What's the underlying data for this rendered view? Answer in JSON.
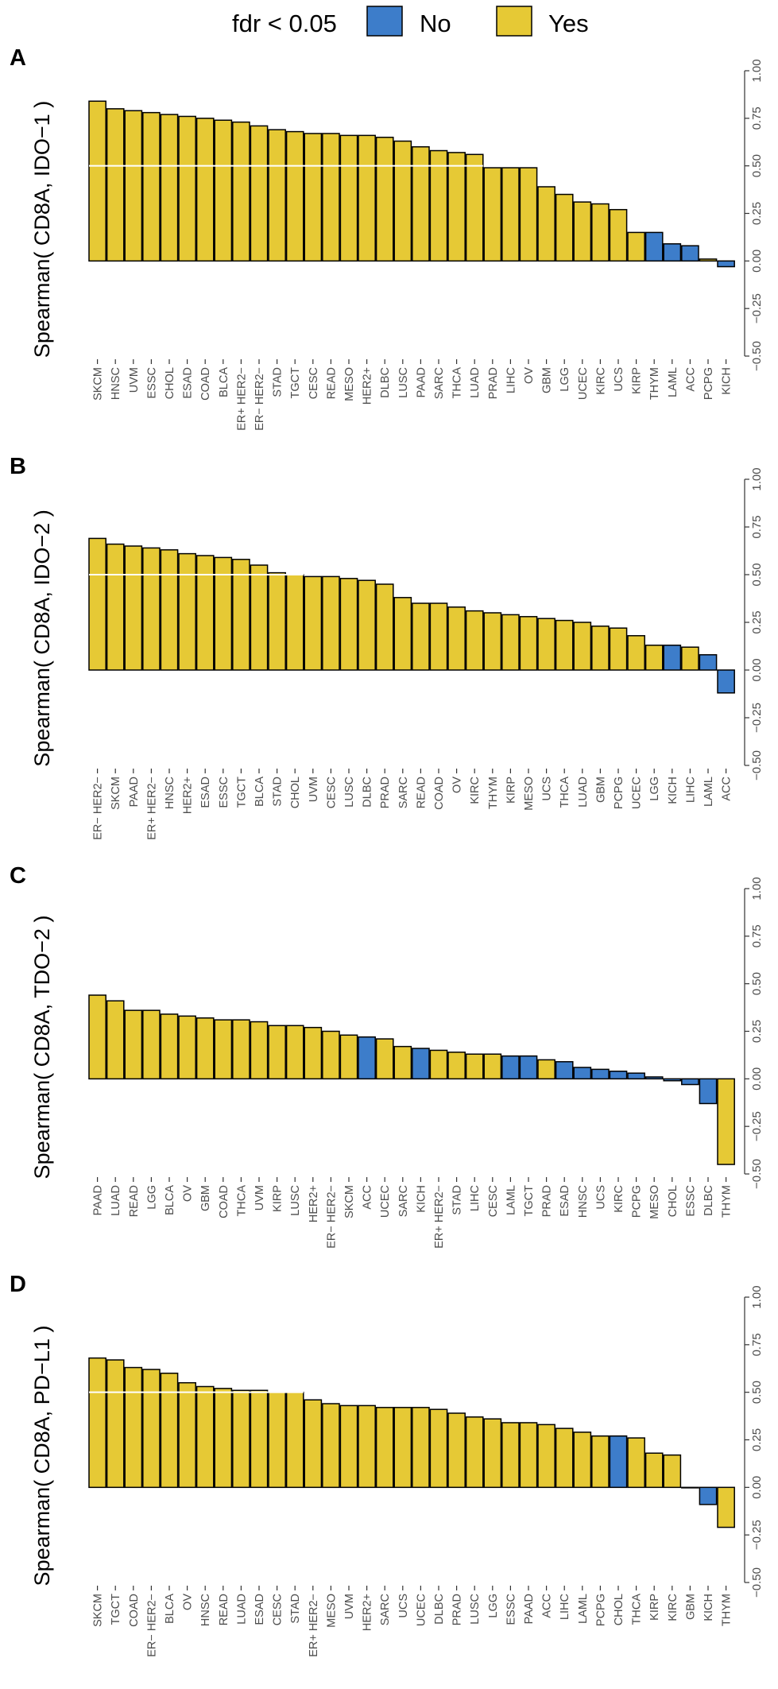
{
  "legend": {
    "title": "fdr < 0.05",
    "entries": [
      {
        "label": "No",
        "color": "#3D7DCA"
      },
      {
        "label": "Yes",
        "color": "#E6C935"
      }
    ]
  },
  "colors": {
    "No": "#3D7DCA",
    "Yes": "#E6C935",
    "stroke": "#000000",
    "refline": "#ffffff"
  },
  "chart_data": [
    {
      "panel": "A",
      "type": "bar",
      "ylabel": "Spearman( CD8A, IDO−1 )",
      "ylim": [
        -0.5,
        1.0
      ],
      "yticks": [
        -0.5,
        -0.25,
        0.0,
        0.25,
        0.5,
        0.75,
        1.0
      ],
      "ytick_labels": [
        "−0.50",
        "−0.25",
        "0.00",
        "0.25",
        "0.50",
        "0.75",
        "1.00"
      ],
      "reference_line": {
        "y": 0.5,
        "until_category": "LUAD"
      },
      "categories": [
        "SKCM",
        "HNSC",
        "UVM",
        "ESSC",
        "CHOL",
        "ESAD",
        "COAD",
        "BLCA",
        "ER+ HER2−",
        "ER− HER2−",
        "STAD",
        "TGCT",
        "CESC",
        "READ",
        "MESO",
        "HER2+",
        "DLBC",
        "LUSC",
        "PAAD",
        "SARC",
        "THCA",
        "LUAD",
        "PRAD",
        "LIHC",
        "OV",
        "GBM",
        "LGG",
        "UCEC",
        "KIRC",
        "UCS",
        "KIRP",
        "THYM",
        "LAML",
        "ACC",
        "PCPG",
        "KICH"
      ],
      "values": [
        0.84,
        0.8,
        0.79,
        0.78,
        0.77,
        0.76,
        0.75,
        0.74,
        0.73,
        0.71,
        0.69,
        0.68,
        0.67,
        0.67,
        0.66,
        0.66,
        0.65,
        0.63,
        0.6,
        0.58,
        0.57,
        0.56,
        0.49,
        0.49,
        0.49,
        0.39,
        0.35,
        0.31,
        0.3,
        0.27,
        0.15,
        0.15,
        0.09,
        0.08,
        0.01,
        -0.03
      ],
      "significant": [
        "Yes",
        "Yes",
        "Yes",
        "Yes",
        "Yes",
        "Yes",
        "Yes",
        "Yes",
        "Yes",
        "Yes",
        "Yes",
        "Yes",
        "Yes",
        "Yes",
        "Yes",
        "Yes",
        "Yes",
        "Yes",
        "Yes",
        "Yes",
        "Yes",
        "Yes",
        "Yes",
        "Yes",
        "Yes",
        "Yes",
        "Yes",
        "Yes",
        "Yes",
        "Yes",
        "Yes",
        "No",
        "No",
        "No",
        "Yes",
        "No"
      ]
    },
    {
      "panel": "B",
      "type": "bar",
      "ylabel": "Spearman( CD8A, IDO−2 )",
      "ylim": [
        -0.5,
        1.0
      ],
      "yticks": [
        -0.5,
        -0.25,
        0.0,
        0.25,
        0.5,
        0.75,
        1.0
      ],
      "ytick_labels": [
        "−0.50",
        "−0.25",
        "0.00",
        "0.25",
        "0.50",
        "0.75",
        "1.00"
      ],
      "reference_line": {
        "y": 0.5,
        "until_category": "CHOL"
      },
      "categories": [
        "ER− HER2−",
        "SKCM",
        "PAAD",
        "ER+ HER2−",
        "HNSC",
        "HER2+",
        "ESAD",
        "ESSC",
        "TGCT",
        "BLCA",
        "STAD",
        "CHOL",
        "UVM",
        "CESC",
        "LUSC",
        "DLBC",
        "PRAD",
        "SARC",
        "READ",
        "COAD",
        "OV",
        "KIRC",
        "THYM",
        "KIRP",
        "MESO",
        "UCS",
        "THCA",
        "LUAD",
        "GBM",
        "PCPG",
        "UCEC",
        "LGG",
        "KICH",
        "LIHC",
        "LAML",
        "ACC"
      ],
      "values": [
        0.69,
        0.66,
        0.65,
        0.64,
        0.63,
        0.61,
        0.6,
        0.59,
        0.58,
        0.55,
        0.51,
        0.5,
        0.49,
        0.49,
        0.48,
        0.47,
        0.45,
        0.38,
        0.35,
        0.35,
        0.33,
        0.31,
        0.3,
        0.29,
        0.28,
        0.27,
        0.26,
        0.25,
        0.23,
        0.22,
        0.18,
        0.13,
        0.13,
        0.12,
        0.08,
        -0.12
      ],
      "significant": [
        "Yes",
        "Yes",
        "Yes",
        "Yes",
        "Yes",
        "Yes",
        "Yes",
        "Yes",
        "Yes",
        "Yes",
        "Yes",
        "Yes",
        "Yes",
        "Yes",
        "Yes",
        "Yes",
        "Yes",
        "Yes",
        "Yes",
        "Yes",
        "Yes",
        "Yes",
        "Yes",
        "Yes",
        "Yes",
        "Yes",
        "Yes",
        "Yes",
        "Yes",
        "Yes",
        "Yes",
        "Yes",
        "No",
        "Yes",
        "No",
        "No"
      ]
    },
    {
      "panel": "C",
      "type": "bar",
      "ylabel": "Spearman( CD8A, TDO−2 )",
      "ylim": [
        -0.5,
        1.0
      ],
      "yticks": [
        -0.5,
        -0.25,
        0.0,
        0.25,
        0.5,
        0.75,
        1.0
      ],
      "ytick_labels": [
        "−0.50",
        "−0.25",
        "0.00",
        "0.25",
        "0.50",
        "0.75",
        "1.00"
      ],
      "reference_line": null,
      "categories": [
        "PAAD",
        "LUAD",
        "READ",
        "LGG",
        "BLCA",
        "OV",
        "GBM",
        "COAD",
        "THCA",
        "UVM",
        "KIRP",
        "LUSC",
        "HER2+",
        "ER− HER2−",
        "SKCM",
        "ACC",
        "UCEC",
        "SARC",
        "KICH",
        "ER+ HER2−",
        "STAD",
        "LIHC",
        "CESC",
        "LAML",
        "TGCT",
        "PRAD",
        "ESAD",
        "HNSC",
        "UCS",
        "KIRC",
        "PCPG",
        "MESO",
        "CHOL",
        "ESSC",
        "DLBC",
        "THYM"
      ],
      "values": [
        0.44,
        0.41,
        0.36,
        0.36,
        0.34,
        0.33,
        0.32,
        0.31,
        0.31,
        0.3,
        0.28,
        0.28,
        0.27,
        0.25,
        0.23,
        0.22,
        0.21,
        0.17,
        0.16,
        0.15,
        0.14,
        0.13,
        0.13,
        0.12,
        0.12,
        0.1,
        0.09,
        0.06,
        0.05,
        0.04,
        0.03,
        0.01,
        -0.01,
        -0.03,
        -0.13,
        -0.45
      ],
      "significant": [
        "Yes",
        "Yes",
        "Yes",
        "Yes",
        "Yes",
        "Yes",
        "Yes",
        "Yes",
        "Yes",
        "Yes",
        "Yes",
        "Yes",
        "Yes",
        "Yes",
        "Yes",
        "No",
        "Yes",
        "Yes",
        "No",
        "Yes",
        "Yes",
        "Yes",
        "Yes",
        "No",
        "No",
        "Yes",
        "No",
        "No",
        "No",
        "No",
        "No",
        "No",
        "No",
        "No",
        "No",
        "Yes"
      ]
    },
    {
      "panel": "D",
      "type": "bar",
      "ylabel": "Spearman( CD8A, PD−L1 )",
      "ylim": [
        -0.5,
        1.0
      ],
      "yticks": [
        -0.5,
        -0.25,
        0.0,
        0.25,
        0.5,
        0.75,
        1.0
      ],
      "ytick_labels": [
        "−0.50",
        "−0.25",
        "0.00",
        "0.25",
        "0.50",
        "0.75",
        "1.00"
      ],
      "reference_line": {
        "y": 0.5,
        "until_category": "STAD"
      },
      "categories": [
        "SKCM",
        "TGCT",
        "COAD",
        "ER− HER2−",
        "BLCA",
        "OV",
        "HNSC",
        "READ",
        "LUAD",
        "ESAD",
        "CESC",
        "STAD",
        "ER+ HER2−",
        "MESO",
        "UVM",
        "HER2+",
        "SARC",
        "UCS",
        "UCEC",
        "DLBC",
        "PRAD",
        "LUSC",
        "LGG",
        "ESSC",
        "PAAD",
        "ACC",
        "LIHC",
        "LAML",
        "PCPG",
        "CHOL",
        "THCA",
        "KIRP",
        "KIRC",
        "GBM",
        "KICH",
        "THYM"
      ],
      "values": [
        0.68,
        0.67,
        0.63,
        0.62,
        0.6,
        0.55,
        0.53,
        0.52,
        0.51,
        0.51,
        0.5,
        0.5,
        0.46,
        0.44,
        0.43,
        0.43,
        0.42,
        0.42,
        0.42,
        0.41,
        0.39,
        0.37,
        0.36,
        0.34,
        0.34,
        0.33,
        0.31,
        0.29,
        0.27,
        0.27,
        0.26,
        0.18,
        0.17,
        0.0,
        -0.09,
        -0.21
      ],
      "significant": [
        "Yes",
        "Yes",
        "Yes",
        "Yes",
        "Yes",
        "Yes",
        "Yes",
        "Yes",
        "Yes",
        "Yes",
        "Yes",
        "Yes",
        "Yes",
        "Yes",
        "Yes",
        "Yes",
        "Yes",
        "Yes",
        "Yes",
        "Yes",
        "Yes",
        "Yes",
        "Yes",
        "Yes",
        "Yes",
        "Yes",
        "Yes",
        "Yes",
        "Yes",
        "No",
        "Yes",
        "Yes",
        "Yes",
        "Yes",
        "No",
        "Yes"
      ]
    }
  ]
}
